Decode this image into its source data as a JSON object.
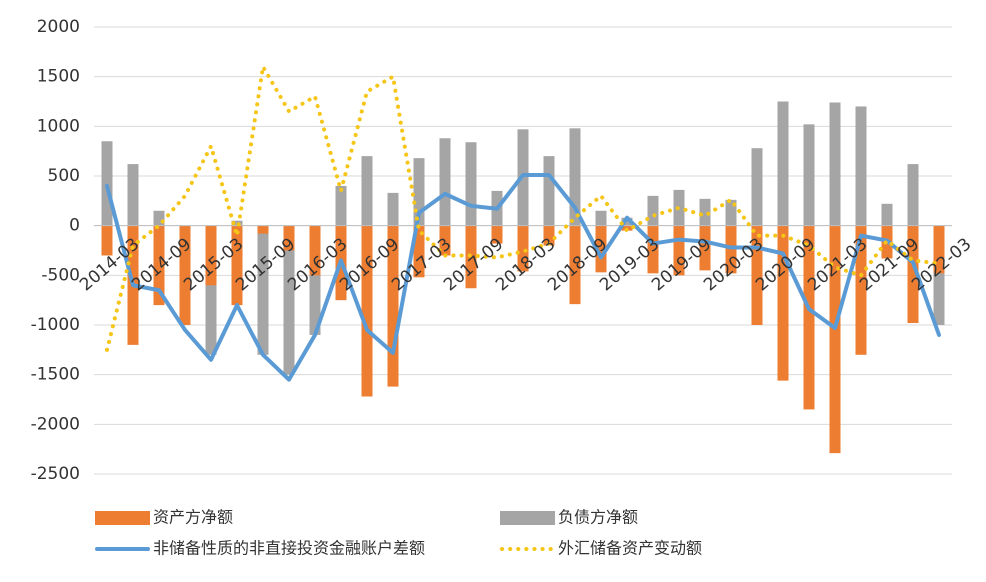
{
  "chart_data": {
    "type": "bar_line",
    "categories": [
      "2014-03",
      null,
      "2014-09",
      null,
      "2015-03",
      null,
      "2015-09",
      null,
      "2016-03",
      null,
      "2016-09",
      null,
      "2017-03",
      null,
      "2017-09",
      null,
      "2018-03",
      null,
      "2018-09",
      null,
      "2019-03",
      null,
      "2019-09",
      null,
      "2020-03",
      null,
      "2020-09",
      null,
      "2021-03",
      null,
      "2021-09",
      null,
      "2022-03"
    ],
    "series": [
      {
        "name": "资产方净额",
        "color": "#ed7d31",
        "kind": "bar",
        "values": [
          -300,
          -1200,
          -800,
          -1000,
          -600,
          -800,
          -80,
          -250,
          -500,
          -750,
          -1720,
          -1620,
          -520,
          -300,
          -630,
          -180,
          -460,
          -200,
          -790,
          -470,
          -50,
          -480,
          -500,
          -450,
          -480,
          -1000,
          -1560,
          -1850,
          -2290,
          -1300,
          -330,
          -980,
          -480
        ]
      },
      {
        "name": "负债方净额",
        "color": "#a5a5a5",
        "kind": "bar",
        "values": [
          850,
          620,
          150,
          -900,
          -1300,
          50,
          -1300,
          -1500,
          -1100,
          400,
          700,
          330,
          680,
          880,
          840,
          350,
          970,
          700,
          980,
          150,
          80,
          300,
          360,
          270,
          260,
          780,
          1250,
          1020,
          1240,
          1200,
          220,
          620,
          -1000
        ]
      },
      {
        "name": "非储备性质的非直接投资金融账户差额",
        "color": "#5b9bd5",
        "kind": "line",
        "values": [
          400,
          -600,
          -650,
          -1050,
          -1350,
          -800,
          -1300,
          -1550,
          -1100,
          -350,
          -1050,
          -1280,
          130,
          320,
          200,
          170,
          510,
          510,
          180,
          -320,
          80,
          -180,
          -140,
          -160,
          -220,
          -220,
          -280,
          -840,
          -1030,
          -100,
          -150,
          -370,
          -1100
        ]
      },
      {
        "name": "外汇储备资产变动额",
        "color": "#f5c518",
        "kind": "dotted",
        "values": [
          -1250,
          -200,
          0,
          300,
          800,
          -100,
          1600,
          1150,
          1300,
          350,
          1350,
          1500,
          -50,
          -300,
          -300,
          -320,
          -260,
          -180,
          80,
          300,
          -50,
          100,
          180,
          100,
          260,
          -100,
          -100,
          -200,
          -420,
          -500,
          -150,
          -350,
          -380
        ]
      }
    ],
    "ylim": [
      -2500,
      2000
    ],
    "yticks": [
      -2500,
      -2000,
      -1500,
      -1000,
      -500,
      0,
      500,
      1000,
      1500,
      2000
    ],
    "grid": true
  }
}
